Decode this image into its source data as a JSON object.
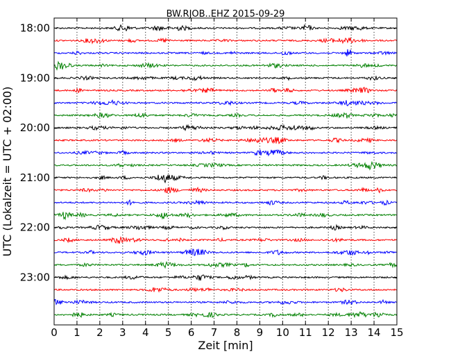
{
  "chart_data": {
    "type": "line",
    "title": "BW.RJOB..EHZ 2015-09-29",
    "xlabel": "Zeit  [min]",
    "ylabel": "UTC (Lokalzeit = UTC + 02:00)",
    "xlim": [
      0,
      15
    ],
    "x_ticks": [
      "0",
      "1",
      "2",
      "3",
      "4",
      "5",
      "6",
      "7",
      "8",
      "9",
      "10",
      "11",
      "12",
      "13",
      "14",
      "15"
    ],
    "y_ticks": [
      "18:00",
      "19:00",
      "20:00",
      "21:00",
      "22:00",
      "23:00"
    ],
    "grid": "vertical dotted",
    "trace_interval_minutes": 15,
    "color_cycle": [
      "#000000",
      "#ff0000",
      "#0000ff",
      "#008000"
    ],
    "traces": [
      {
        "start": "18:00",
        "color": "#000000"
      },
      {
        "start": "18:15",
        "color": "#ff0000"
      },
      {
        "start": "18:30",
        "color": "#0000ff"
      },
      {
        "start": "18:45",
        "color": "#008000"
      },
      {
        "start": "19:00",
        "color": "#000000"
      },
      {
        "start": "19:15",
        "color": "#ff0000"
      },
      {
        "start": "19:30",
        "color": "#0000ff"
      },
      {
        "start": "19:45",
        "color": "#008000"
      },
      {
        "start": "20:00",
        "color": "#000000"
      },
      {
        "start": "20:15",
        "color": "#ff0000"
      },
      {
        "start": "20:30",
        "color": "#0000ff"
      },
      {
        "start": "20:45",
        "color": "#008000"
      },
      {
        "start": "21:00",
        "color": "#000000"
      },
      {
        "start": "21:15",
        "color": "#ff0000"
      },
      {
        "start": "21:30",
        "color": "#0000ff"
      },
      {
        "start": "21:45",
        "color": "#008000"
      },
      {
        "start": "22:00",
        "color": "#000000"
      },
      {
        "start": "22:15",
        "color": "#ff0000"
      },
      {
        "start": "22:30",
        "color": "#0000ff"
      },
      {
        "start": "22:45",
        "color": "#008000"
      },
      {
        "start": "23:00",
        "color": "#000000"
      },
      {
        "start": "23:15",
        "color": "#ff0000"
      },
      {
        "start": "23:30",
        "color": "#0000ff"
      },
      {
        "start": "23:45",
        "color": "#008000"
      }
    ]
  }
}
